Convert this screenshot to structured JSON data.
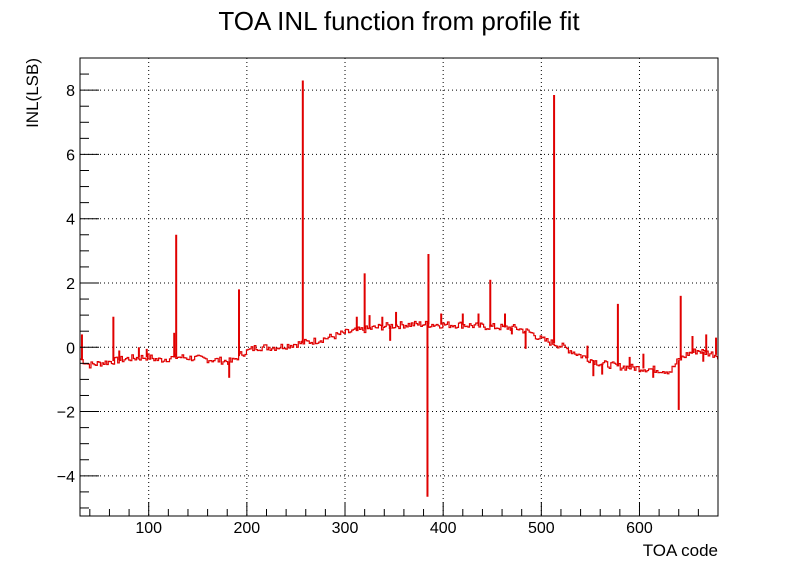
{
  "chart_data": {
    "type": "line",
    "title": "TOA INL function from profile fit",
    "xlabel": "TOA code",
    "ylabel": "INL(LSB)",
    "xlim": [
      30,
      680
    ],
    "ylim": [
      -5.25,
      9.0
    ],
    "grid": true,
    "x_ticks": [
      100,
      200,
      300,
      400,
      500,
      600
    ],
    "x_tick_labels": [
      "100",
      "200",
      "300",
      "400",
      "500",
      "600"
    ],
    "y_ticks": [
      -4,
      -2,
      0,
      2,
      4,
      6,
      8
    ],
    "y_tick_labels": [
      "−4",
      "−2",
      "0",
      "2",
      "4",
      "6",
      "8"
    ],
    "series": [
      {
        "color": "#e00000",
        "baseline": [
          [
            30,
            -0.35
          ],
          [
            40,
            -0.55
          ],
          [
            60,
            -0.45
          ],
          [
            80,
            -0.35
          ],
          [
            100,
            -0.3
          ],
          [
            110,
            -0.4
          ],
          [
            130,
            -0.3
          ],
          [
            150,
            -0.35
          ],
          [
            170,
            -0.4
          ],
          [
            185,
            -0.45
          ],
          [
            195,
            -0.2
          ],
          [
            210,
            0.0
          ],
          [
            230,
            0.0
          ],
          [
            250,
            0.1
          ],
          [
            270,
            0.2
          ],
          [
            290,
            0.35
          ],
          [
            300,
            0.45
          ],
          [
            320,
            0.55
          ],
          [
            340,
            0.65
          ],
          [
            360,
            0.7
          ],
          [
            380,
            0.72
          ],
          [
            400,
            0.7
          ],
          [
            420,
            0.7
          ],
          [
            440,
            0.65
          ],
          [
            460,
            0.62
          ],
          [
            475,
            0.6
          ],
          [
            490,
            0.45
          ],
          [
            500,
            0.25
          ],
          [
            520,
            0.05
          ],
          [
            540,
            -0.25
          ],
          [
            560,
            -0.5
          ],
          [
            580,
            -0.6
          ],
          [
            600,
            -0.65
          ],
          [
            620,
            -0.7
          ],
          [
            632,
            -0.75
          ],
          [
            640,
            -0.4
          ],
          [
            650,
            -0.2
          ],
          [
            660,
            -0.1
          ],
          [
            680,
            -0.25
          ]
        ],
        "spikes": [
          [
            32,
            0.4
          ],
          [
            64,
            0.95
          ],
          [
            126,
            0.45
          ],
          [
            128,
            3.5
          ],
          [
            192,
            1.8
          ],
          [
            257,
            8.3
          ],
          [
            320,
            2.3
          ],
          [
            384,
            -4.65
          ],
          [
            385,
            2.9
          ],
          [
            448,
            2.1
          ],
          [
            513,
            7.85
          ],
          [
            578,
            1.35
          ],
          [
            640,
            -1.95
          ],
          [
            642,
            1.6
          ],
          [
            668,
            0.4
          ],
          [
            678,
            0.3
          ],
          [
            182,
            -0.95
          ],
          [
            70,
            -0.1
          ],
          [
            90,
            0.0
          ],
          [
            98,
            -0.05
          ],
          [
            312,
            0.95
          ],
          [
            325,
            1.0
          ],
          [
            338,
            0.95
          ],
          [
            346,
            0.2
          ],
          [
            352,
            1.1
          ],
          [
            398,
            1.05
          ],
          [
            420,
            1.05
          ],
          [
            436,
            1.05
          ],
          [
            463,
            1.05
          ],
          [
            470,
            0.4
          ],
          [
            484,
            -0.05
          ],
          [
            547,
            0.05
          ],
          [
            553,
            -0.9
          ],
          [
            562,
            -0.85
          ],
          [
            590,
            -0.3
          ],
          [
            604,
            -0.2
          ],
          [
            614,
            -0.95
          ],
          [
            654,
            0.35
          ],
          [
            665,
            -0.45
          ]
        ]
      }
    ]
  }
}
